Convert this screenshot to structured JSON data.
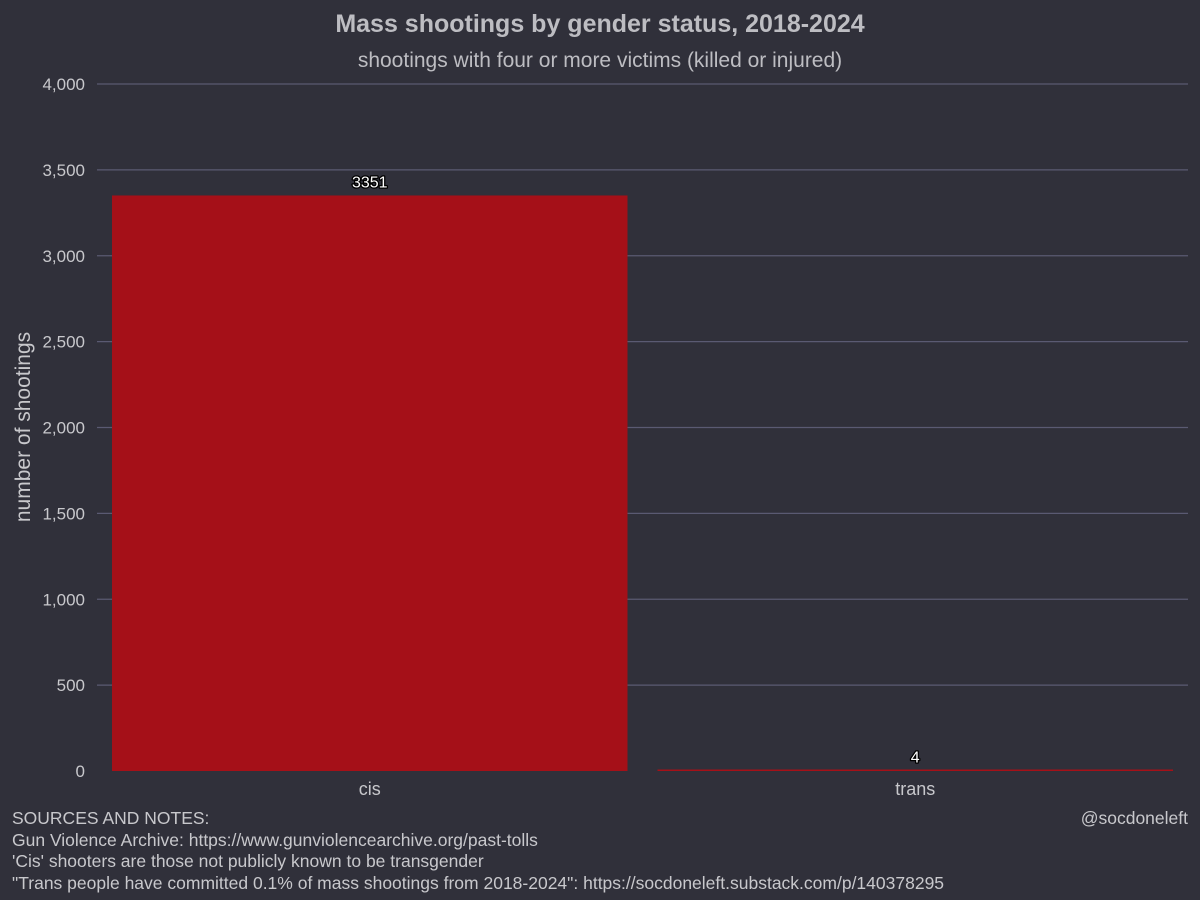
{
  "chart_data": {
    "type": "bar",
    "title": "Mass shootings by gender status, 2018-2024",
    "subtitle": "shootings with four or more victims (killed or injured)",
    "xlabel": "",
    "ylabel": "number of shootings",
    "categories": [
      "cis",
      "trans"
    ],
    "values": [
      3351,
      4
    ],
    "data_labels": [
      "3351",
      "4"
    ],
    "ylim": [
      0,
      4000
    ],
    "yticks": [
      0,
      500,
      1000,
      1500,
      2000,
      2500,
      3000,
      3500,
      4000
    ],
    "ytick_labels": [
      "0",
      "500",
      "1,000",
      "1,500",
      "2,000",
      "2,500",
      "3,000",
      "3,500",
      "4,000"
    ],
    "grid": true,
    "legend": "none"
  },
  "colors": {
    "background": "#30303a",
    "bar": "#a51018",
    "grid": "#5a5a72",
    "text": "#c8c8cc",
    "title": "#bdbdc2"
  },
  "notes": {
    "heading": "SOURCES AND NOTES:",
    "lines": [
      "Gun Violence Archive: https://www.gunviolencearchive.org/past-tolls",
      "'Cis' shooters are those not publicly known to be transgender",
      "\"Trans people have committed 0.1% of mass shootings from 2018-2024\": https://socdoneleft.substack.com/p/140378295"
    ]
  },
  "credit": "@socdoneleft"
}
